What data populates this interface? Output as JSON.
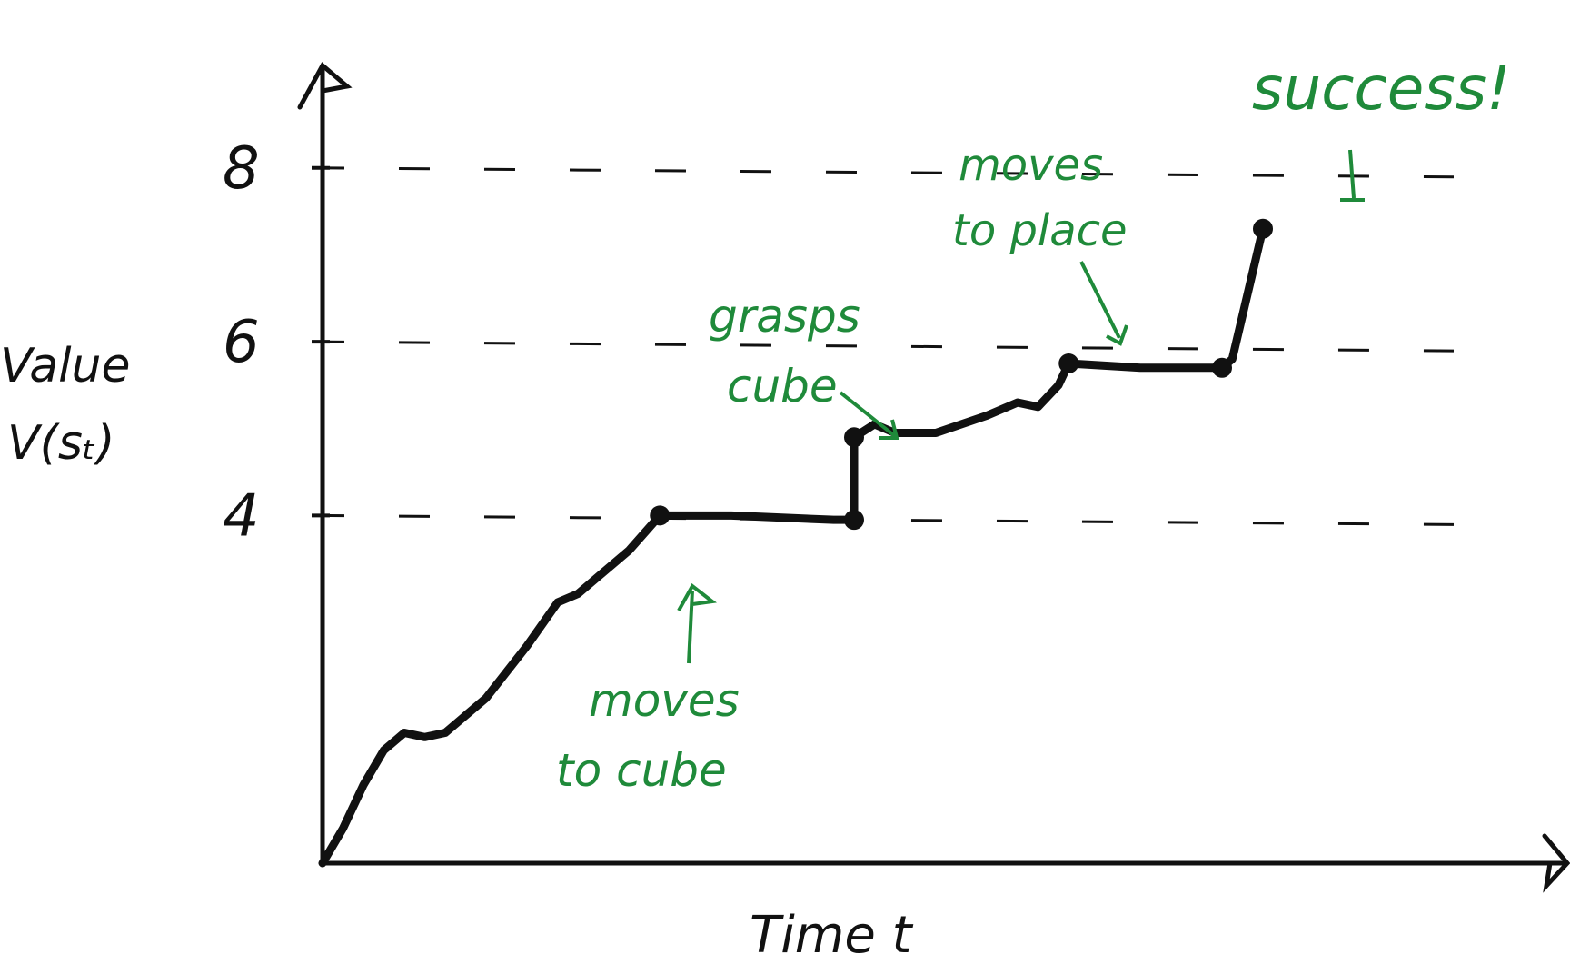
{
  "chart_data": {
    "type": "line",
    "xlabel": "Time  t",
    "ylabel_lines": [
      "Value",
      "V(sₜ)"
    ],
    "y_ticks": [
      {
        "value": 4,
        "label": "4"
      },
      {
        "value": 6,
        "label": "6"
      },
      {
        "value": 8,
        "label": "8"
      }
    ],
    "ylim": [
      0,
      9.2
    ],
    "xlim": [
      0,
      1
    ],
    "grid": true,
    "gridlines": [
      4,
      6,
      8
    ],
    "series": [
      {
        "points": [
          [
            0.0,
            0.0
          ],
          [
            0.02,
            0.4
          ],
          [
            0.04,
            0.9
          ],
          [
            0.06,
            1.3
          ],
          [
            0.08,
            1.5
          ],
          [
            0.1,
            1.45
          ],
          [
            0.12,
            1.5
          ],
          [
            0.16,
            1.9
          ],
          [
            0.2,
            2.5
          ],
          [
            0.23,
            3.0
          ],
          [
            0.25,
            3.1
          ],
          [
            0.27,
            3.3
          ],
          [
            0.3,
            3.6
          ],
          [
            0.33,
            4.0
          ],
          [
            0.4,
            4.0
          ],
          [
            0.5,
            3.95
          ],
          [
            0.52,
            3.95
          ],
          [
            0.52,
            4.9
          ],
          [
            0.54,
            5.05
          ],
          [
            0.56,
            4.95
          ],
          [
            0.6,
            4.95
          ],
          [
            0.65,
            5.15
          ],
          [
            0.68,
            5.3
          ],
          [
            0.7,
            5.25
          ],
          [
            0.72,
            5.5
          ],
          [
            0.73,
            5.75
          ],
          [
            0.8,
            5.7
          ],
          [
            0.88,
            5.7
          ],
          [
            0.89,
            5.8
          ],
          [
            0.9,
            6.3
          ],
          [
            0.92,
            7.3
          ]
        ]
      }
    ],
    "key_points": [
      {
        "x": 0.33,
        "y": 4.0
      },
      {
        "x": 0.52,
        "y": 3.95
      },
      {
        "x": 0.52,
        "y": 4.9
      },
      {
        "x": 0.73,
        "y": 5.75
      },
      {
        "x": 0.88,
        "y": 5.7
      },
      {
        "x": 0.92,
        "y": 7.3
      }
    ],
    "annotations": [
      {
        "name": "annotation-moves-to-cube",
        "lines": [
          "moves",
          "to  cube"
        ]
      },
      {
        "name": "annotation-grasps-cube",
        "lines": [
          "grasps",
          "cube"
        ]
      },
      {
        "name": "annotation-moves-to-place",
        "lines": [
          "moves",
          "to place"
        ]
      },
      {
        "name": "annotation-success",
        "lines": [
          "success!"
        ]
      }
    ],
    "colors": {
      "curve": "#111111",
      "annotation": "#1f8a3a"
    }
  }
}
